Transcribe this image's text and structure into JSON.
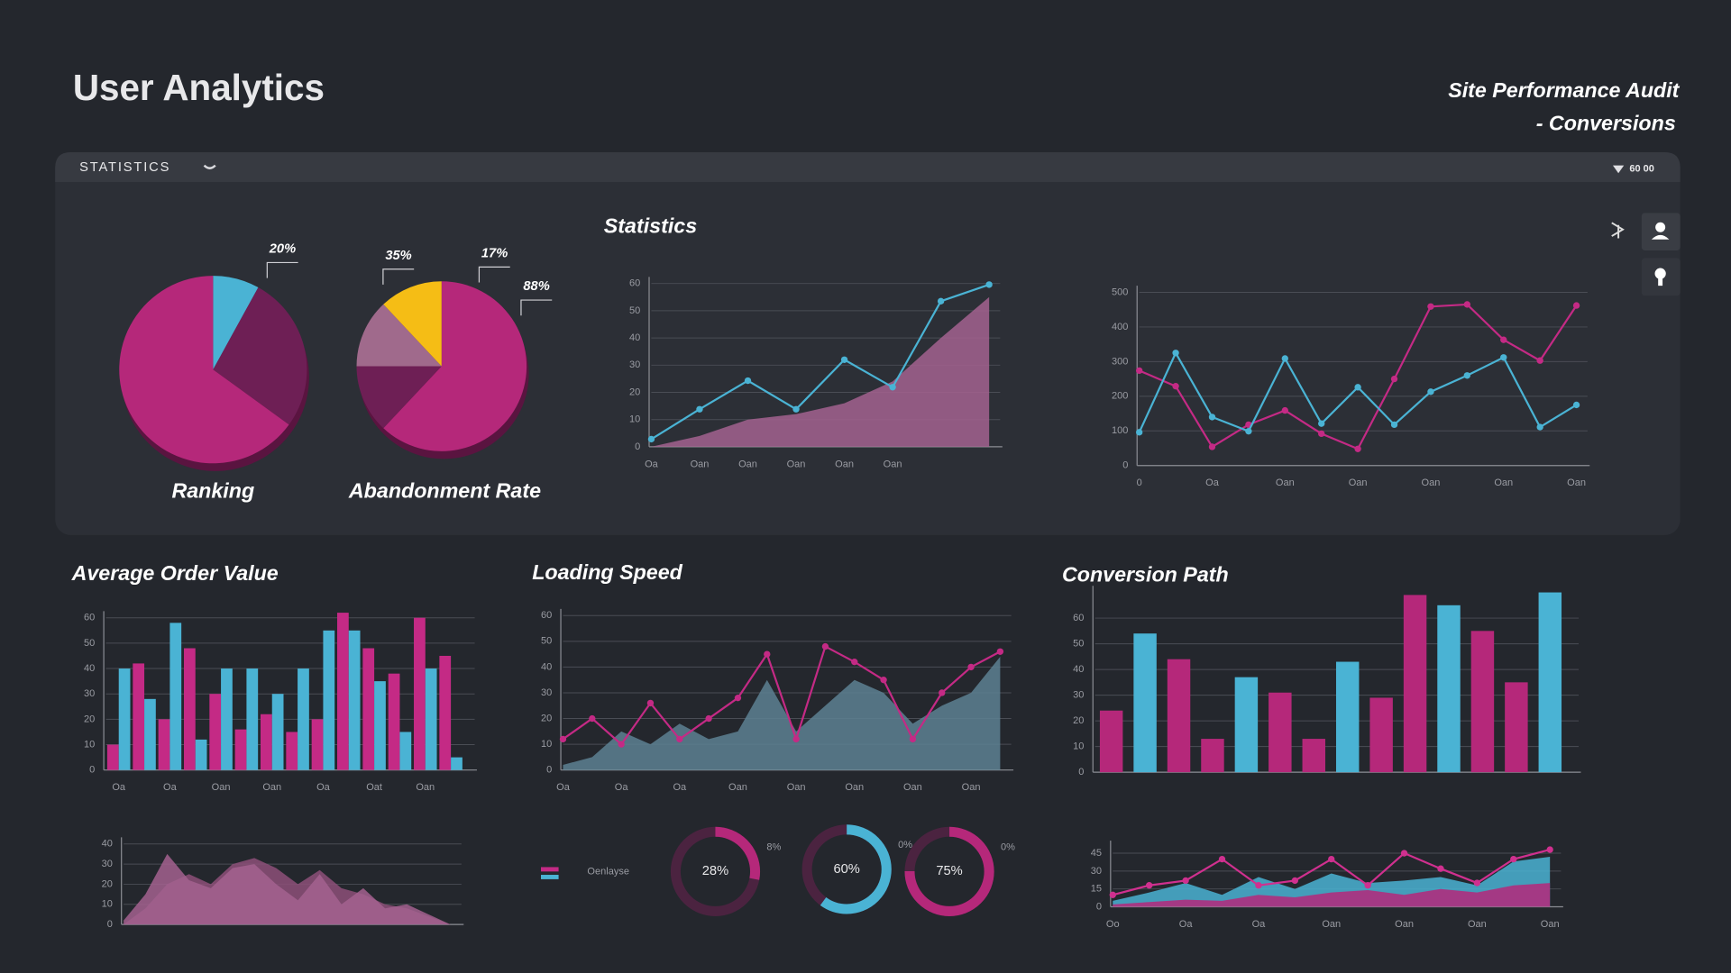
{
  "header": {
    "title": "User Analytics",
    "subtitle": [
      "Site Performance Audit",
      "- Conversions"
    ]
  },
  "toolbar": {
    "label": "STATISTICS",
    "value": "60 00"
  },
  "chart_data": [
    {
      "type": "pie",
      "title": "Ranking",
      "values": [
        8,
        27,
        65
      ],
      "colors": [
        "#4ab3d4",
        "#6e1f55",
        "#b5287a"
      ],
      "annotations": [
        "20%"
      ]
    },
    {
      "type": "pie",
      "title": "Abandonment Rate",
      "values": [
        62,
        13,
        13,
        12
      ],
      "colors": [
        "#b5287a",
        "#6e1f55",
        "#a06a8c",
        "#f5bd15"
      ],
      "annotations": [
        "35%",
        "17%",
        "88%"
      ]
    },
    {
      "type": "line",
      "title": "Statistics",
      "categories": [
        "Oa",
        "Oan",
        "Oan",
        "Oan",
        "Oan",
        "Oan",
        null,
        null
      ],
      "series": [
        {
          "color": "#a3628f",
          "style": "area",
          "values": [
            0,
            4,
            10,
            12,
            16,
            24,
            40,
            55
          ]
        },
        {
          "color": "#4ab3d4",
          "style": "line",
          "values": [
            2.8,
            13.8,
            24.3,
            13.8,
            32,
            21.9,
            53.5,
            59.6
          ]
        }
      ],
      "ylim": [
        0,
        60
      ],
      "yticks": [
        0,
        10,
        20,
        30,
        40,
        50,
        60
      ],
      "grid": true
    },
    {
      "type": "line",
      "categories": [
        "0",
        null,
        "Oa",
        null,
        "Oan",
        null,
        "Oan",
        null,
        "Oan",
        null,
        "Oan",
        null,
        "Oan"
      ],
      "series": [
        {
          "color": "#c42a85",
          "style": "line",
          "values": [
            274,
            229,
            54,
            118,
            159,
            92,
            48,
            250,
            459,
            465,
            363,
            303,
            462
          ]
        },
        {
          "color": "#4ab3d4",
          "style": "line",
          "values": [
            96,
            325,
            140,
            99,
            309,
            121,
            226,
            118,
            213,
            260,
            312,
            111,
            175
          ]
        }
      ],
      "ylim": [
        0,
        500
      ],
      "yticks": [
        0,
        100,
        200,
        300,
        400,
        500
      ],
      "grid": true
    },
    {
      "type": "bar",
      "title": "Average Order Value",
      "categories": [
        "Oa",
        null,
        "Oa",
        null,
        "Oan",
        null,
        "Oan",
        null,
        "Oa",
        null,
        "Oat",
        null,
        "Oan",
        null
      ],
      "series": [
        {
          "color": "#c42a85",
          "values": [
            10,
            42,
            20,
            48,
            30,
            16,
            22,
            15,
            20,
            62,
            48,
            38,
            60,
            45
          ]
        },
        {
          "color": "#4ab3d4",
          "values": [
            40,
            28,
            58,
            12,
            40,
            40,
            30,
            40,
            55,
            55,
            35,
            15,
            40,
            5
          ]
        }
      ],
      "ylim": [
        0,
        60
      ],
      "yticks": [
        0,
        10,
        20,
        30,
        40,
        50,
        60
      ],
      "grid": true
    },
    {
      "type": "line",
      "title": "Loading Speed",
      "categories": [
        "Oa",
        null,
        "Oa",
        null,
        "Oa",
        null,
        "Oan",
        null,
        "Oan",
        null,
        "Oan",
        null,
        "Oan",
        null,
        "Oan",
        null
      ],
      "series": [
        {
          "color": "#5d8193",
          "style": "area",
          "values": [
            2,
            5,
            15,
            10,
            18,
            12,
            15,
            35,
            15,
            25,
            35,
            30,
            18,
            25,
            30,
            44
          ]
        },
        {
          "color": "#c42a85",
          "style": "line",
          "values": [
            12,
            20,
            10,
            26,
            12,
            20,
            28,
            45,
            12,
            48,
            42,
            35,
            12,
            30,
            40,
            46
          ]
        }
      ],
      "ylim": [
        0,
        60
      ],
      "yticks": [
        0,
        10,
        20,
        30,
        40,
        50,
        60
      ],
      "grid": true
    },
    {
      "type": "bar",
      "title": "Conversion Path",
      "values": [
        24,
        54,
        44,
        13,
        37,
        31,
        13,
        43,
        29,
        69,
        65,
        55,
        35,
        70
      ],
      "colors": [
        "#b5287a",
        "#4ab3d4",
        "#b5287a",
        "#b5287a",
        "#4ab3d4",
        "#b5287a",
        "#b5287a",
        "#4ab3d4",
        "#b5287a",
        "#b5287a",
        "#4ab3d4",
        "#b5287a",
        "#b5287a",
        "#4ab3d4"
      ],
      "ylim": [
        0,
        70
      ],
      "yticks": [
        0,
        10,
        20,
        30,
        40,
        50,
        60
      ],
      "grid": true
    },
    {
      "type": "line",
      "categories": [
        null,
        null,
        null,
        null,
        null,
        null,
        null,
        null,
        null,
        null,
        null,
        null,
        null,
        null,
        null,
        null
      ],
      "series": [
        {
          "color": "#8d5079",
          "style": "area",
          "values": [
            0,
            8,
            20,
            25,
            20,
            30,
            33,
            28,
            20,
            27,
            18,
            15,
            10,
            8,
            4,
            0
          ]
        },
        {
          "color": "#a3628f",
          "style": "area",
          "values": [
            2,
            15,
            35,
            22,
            18,
            28,
            30,
            20,
            12,
            25,
            10,
            18,
            8,
            10,
            5,
            0
          ]
        }
      ],
      "ylim": [
        0,
        40
      ],
      "yticks": [
        0,
        10,
        20,
        30,
        40
      ],
      "grid": true
    },
    {
      "type": "donut",
      "legend": "Oenlayse",
      "values": [
        28,
        60,
        75
      ],
      "value_labels": [
        "28%",
        "60%",
        "75%"
      ],
      "colors": [
        "#b5287a",
        "#4ab3d4",
        "#b5287a"
      ],
      "side_labels": [
        "8%",
        "0%",
        "0%"
      ]
    },
    {
      "type": "line",
      "categories": [
        "Oo",
        null,
        "Oa",
        null,
        "Oa",
        null,
        "Oan",
        null,
        "Oan",
        null,
        "Oan",
        null,
        "Oan"
      ],
      "series": [
        {
          "color": "#4ab3d4",
          "style": "area",
          "values": [
            5,
            12,
            20,
            10,
            25,
            15,
            28,
            20,
            22,
            25,
            18,
            38,
            42
          ]
        },
        {
          "color": "#b5287a",
          "style": "area",
          "values": [
            2,
            4,
            6,
            5,
            10,
            8,
            12,
            14,
            10,
            15,
            12,
            18,
            20
          ]
        },
        {
          "color": "#d0308f",
          "style": "line",
          "values": [
            10,
            18,
            22,
            40,
            18,
            22,
            40,
            18,
            45,
            32,
            20,
            40,
            48
          ]
        }
      ],
      "ylim": [
        0,
        50
      ],
      "yticks": [
        0,
        15,
        30,
        45
      ],
      "grid": true
    }
  ]
}
